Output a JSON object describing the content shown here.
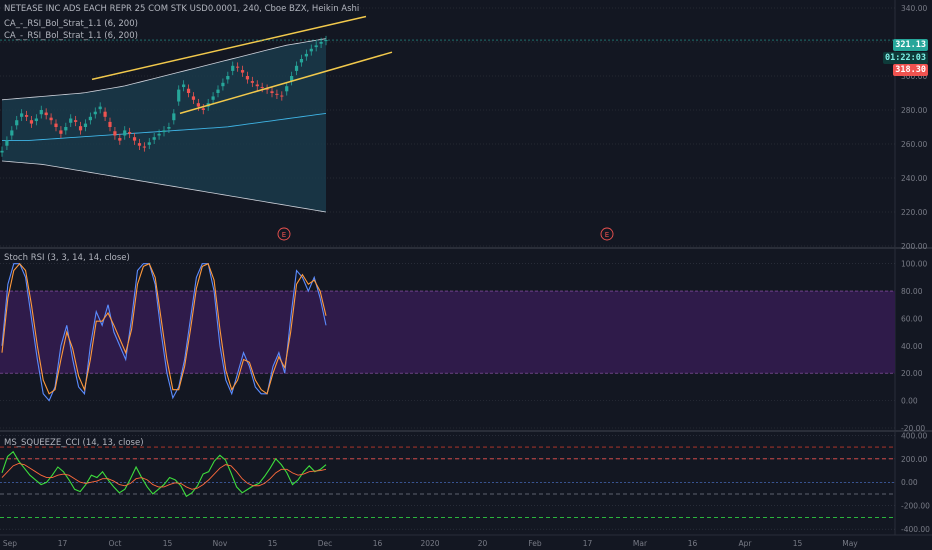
{
  "header": {
    "symbol_line": "NETEASE INC ADS EACH REPR 25 COM STK USD0.0001, 240, Cboe BZX, Heikin Ashi",
    "overlay_1": "CA_-_RSI_Bol_Strat_1.1 (6, 200)",
    "overlay_2": "CA_-_RSI_Bol_Strat_1.1 (6, 200)"
  },
  "price_tags": {
    "last": "321.13",
    "countdown": "01:22:03",
    "other": "318.30"
  },
  "colors": {
    "background": "#131722",
    "grid": "#363a45",
    "bull": "#26a69a",
    "bear": "#ef5350",
    "channel": "#f2c94c",
    "bb_fill": "#1a3a4a",
    "rsi_band": "#2f1b4a",
    "rsi_k": "#5b8cff",
    "rsi_d": "#ff9a3c",
    "cci_line": "#3ddc3d",
    "cci_ma": "#ff6a3c",
    "tag_green": "#26a69a",
    "tag_red": "#ef5350"
  },
  "time_axis": [
    "Sep",
    "17",
    "Oct",
    "15",
    "Nov",
    "15",
    "Dec",
    "16",
    "2020",
    "20",
    "Feb",
    "17",
    "Mar",
    "16",
    "Apr",
    "15",
    "May"
  ],
  "events_marker": "E",
  "chart_data": [
    {
      "type": "candlestick",
      "pane": "price",
      "ylim": [
        200,
        340
      ],
      "yticks": [
        "340.00",
        "320.00",
        "300.00",
        "280.00",
        "260.00",
        "240.00",
        "220.00",
        "200.00"
      ],
      "close_series": [
        256,
        262,
        268,
        274,
        278,
        276,
        272,
        275,
        280,
        277,
        274,
        270,
        266,
        270,
        275,
        273,
        268,
        272,
        276,
        279,
        282,
        276,
        270,
        265,
        262,
        268,
        266,
        262,
        259,
        258,
        261,
        264,
        266,
        268,
        270,
        278,
        292,
        295,
        290,
        286,
        282,
        280,
        284,
        288,
        292,
        296,
        300,
        306,
        305,
        302,
        298,
        296,
        294,
        293,
        292,
        290,
        289,
        288,
        294,
        300,
        306,
        310,
        313,
        316,
        318,
        320,
        321.13
      ],
      "bb_upper": [
        286,
        287,
        288,
        289,
        290,
        292,
        294,
        297,
        300,
        303,
        306,
        309,
        312,
        315,
        318,
        320,
        322
      ],
      "bb_lower": [
        250,
        249,
        248,
        246,
        244,
        242,
        240,
        238,
        236,
        234,
        232,
        230,
        228,
        226,
        224,
        222,
        220
      ],
      "bb_mid": [
        262,
        262,
        263,
        264,
        265,
        266,
        267,
        268,
        269,
        270,
        272,
        274,
        276,
        278
      ],
      "channel_upper": {
        "x": [
          "Sep 30",
          "Dec 5"
        ],
        "y": [
          298,
          335
        ]
      },
      "channel_lower": {
        "x": [
          "Oct 8",
          "Dec 8"
        ],
        "y": [
          278,
          314
        ]
      }
    },
    {
      "type": "line",
      "pane": "stoch_rsi",
      "title": "Stoch RSI (3, 3, 14, 14, close)",
      "ylim": [
        -20,
        110
      ],
      "yticks": [
        "100.00",
        "80.00",
        "60.00",
        "40.00",
        "20.00",
        "0.00",
        "-20.00"
      ],
      "band": [
        20,
        80
      ],
      "series": [
        {
          "values": [
            40,
            85,
            100,
            100,
            90,
            60,
            30,
            5,
            0,
            10,
            40,
            55,
            30,
            10,
            5,
            40,
            65,
            55,
            70,
            50,
            40,
            30,
            60,
            95,
            100,
            100,
            85,
            50,
            20,
            2,
            10,
            30,
            60,
            90,
            100,
            100,
            80,
            40,
            15,
            5,
            20,
            35,
            25,
            10,
            5,
            5,
            25,
            35,
            20,
            60,
            95,
            90,
            80,
            90,
            75,
            55
          ]
        },
        {
          "values": [
            35,
            75,
            95,
            100,
            95,
            70,
            40,
            15,
            5,
            8,
            30,
            50,
            38,
            18,
            8,
            30,
            58,
            58,
            64,
            55,
            45,
            35,
            52,
            85,
            98,
            100,
            90,
            60,
            30,
            8,
            8,
            25,
            52,
            82,
            98,
            100,
            88,
            52,
            22,
            8,
            15,
            30,
            28,
            15,
            8,
            5,
            20,
            32,
            24,
            50,
            85,
            92,
            85,
            88,
            80,
            62
          ]
        }
      ]
    },
    {
      "type": "line",
      "pane": "squeeze_cci",
      "title": "MS_SQUEEZE_CCI (14, 13, close)",
      "ylim": [
        -450,
        420
      ],
      "yticks": [
        "400.00",
        "200.00",
        "0.00",
        "-200.00",
        "-400.00"
      ],
      "levels": [
        300,
        200,
        -100,
        -300
      ],
      "series": [
        {
          "values": [
            80,
            220,
            260,
            180,
            120,
            60,
            20,
            -20,
            0,
            60,
            130,
            90,
            20,
            -60,
            -80,
            -20,
            60,
            40,
            90,
            20,
            -40,
            -90,
            -60,
            30,
            130,
            40,
            -40,
            -100,
            -60,
            -20,
            40,
            20,
            -30,
            -120,
            -90,
            -30,
            70,
            90,
            180,
            230,
            190,
            80,
            -40,
            -90,
            -60,
            -30,
            -10,
            50,
            120,
            200,
            150,
            80,
            -20,
            20,
            90,
            140,
            90,
            110,
            150
          ]
        },
        {
          "values": [
            40,
            90,
            140,
            160,
            150,
            120,
            90,
            60,
            40,
            40,
            60,
            70,
            60,
            30,
            0,
            -10,
            0,
            10,
            30,
            30,
            10,
            -20,
            -30,
            -10,
            30,
            40,
            20,
            -20,
            -40,
            -40,
            -20,
            -5,
            -10,
            -40,
            -60,
            -50,
            -20,
            20,
            70,
            120,
            150,
            140,
            90,
            30,
            -10,
            -30,
            -30,
            -10,
            30,
            80,
            110,
            110,
            80,
            60,
            70,
            90,
            95,
            100,
            110
          ]
        }
      ]
    }
  ]
}
